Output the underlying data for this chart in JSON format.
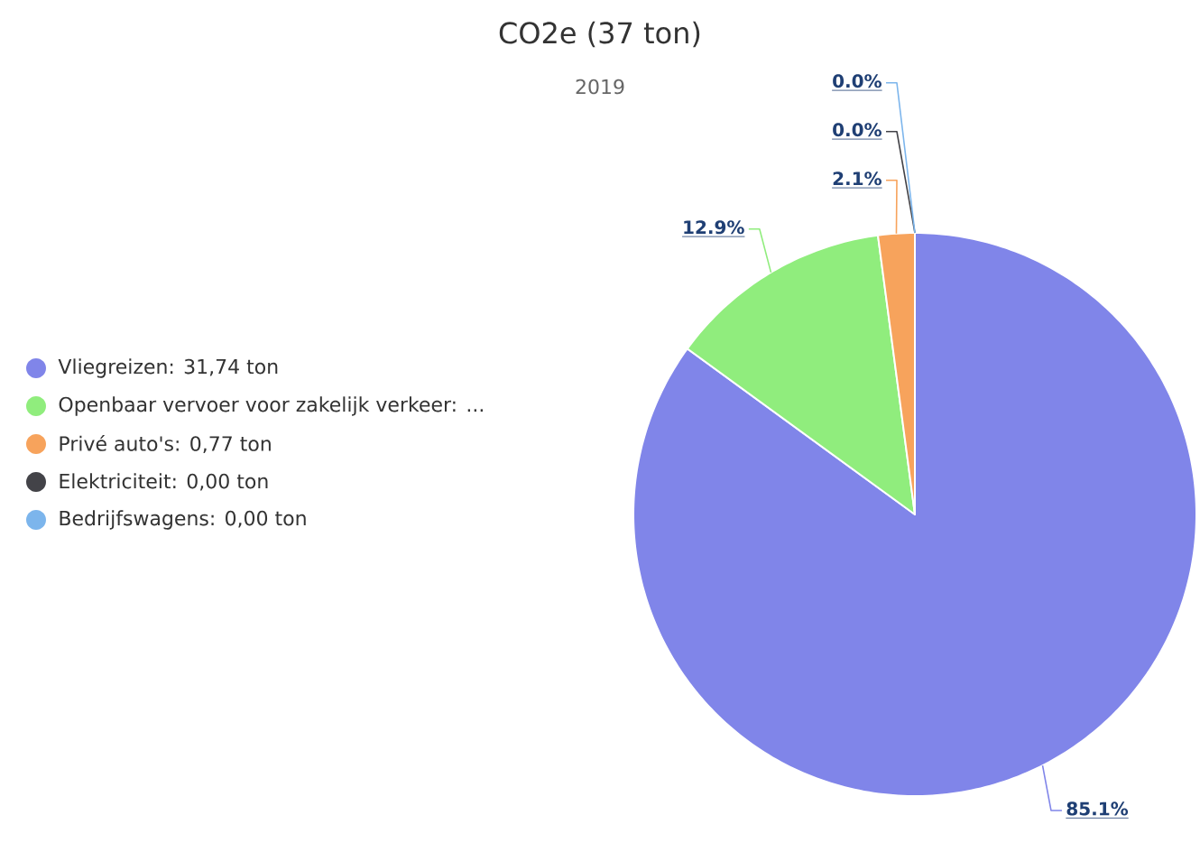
{
  "chart_data": {
    "type": "pie",
    "title": "CO2e (37 ton)",
    "subtitle": "2019",
    "categories": [
      "Vliegreizen: 31,74 ton",
      "Openbaar vervoer voor zakelijk verkeer: ...",
      "Privé auto's: 0,77 ton",
      "Elektriciteit: 0,00 ton",
      "Bedrijfswagens: 0,00 ton"
    ],
    "values": [
      85.1,
      12.9,
      2.1,
      0.0,
      0.0
    ],
    "value_labels": [
      "85.1%",
      "12.9%",
      "2.1%",
      "0.0%",
      "0.0%"
    ],
    "colors": [
      "#8085e9",
      "#90ed7d",
      "#f7a35c",
      "#434348",
      "#7cb5ec"
    ],
    "legend": "left"
  }
}
